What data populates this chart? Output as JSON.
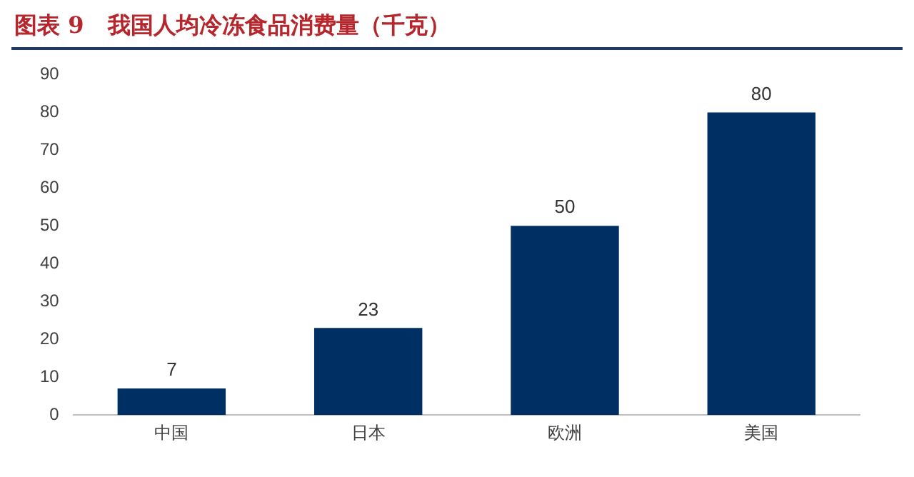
{
  "chart_data": {
    "type": "bar",
    "title": "图表 9   我国人均冷冻食品消费量（千克）",
    "categories": [
      "中国",
      "日本",
      "欧洲",
      "美国"
    ],
    "values": [
      7,
      23,
      50,
      80
    ],
    "color": "#003063",
    "ylim": [
      0,
      90
    ],
    "yticks": [
      0,
      10,
      20,
      30,
      40,
      50,
      60,
      70,
      80,
      90
    ],
    "grid": false,
    "legend": false,
    "data_labels": true
  }
}
